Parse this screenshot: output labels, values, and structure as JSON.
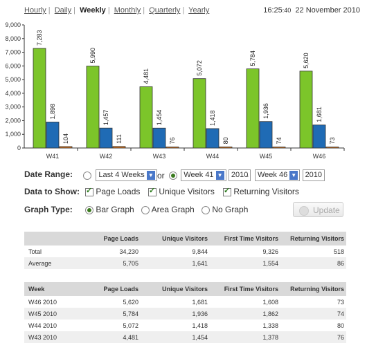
{
  "nav": {
    "items": [
      "Hourly",
      "Daily",
      "Weekly",
      "Monthly",
      "Quarterly",
      "Yearly"
    ],
    "active_index": 2
  },
  "clock": {
    "time": "16:25",
    "seconds": ":40",
    "date": "22 November 2010"
  },
  "chart_data": {
    "type": "bar",
    "categories": [
      "W41",
      "W42",
      "W43",
      "W44",
      "W45",
      "W46"
    ],
    "ylim": [
      0,
      9000
    ],
    "yticks": [
      "0",
      "1,000",
      "2,000",
      "3,000",
      "4,000",
      "5,000",
      "6,000",
      "7,000",
      "8,000",
      "9,000"
    ],
    "grid": false,
    "series": [
      {
        "values": [
          7283,
          5990,
          4481,
          5072,
          5784,
          5620
        ],
        "labels": [
          "7,283",
          "5,990",
          "4,481",
          "5,072",
          "5,784",
          "5,620"
        ],
        "color": "#7cc52a"
      },
      {
        "values": [
          1898,
          1457,
          1454,
          1418,
          1936,
          1681
        ],
        "labels": [
          "1,898",
          "1,457",
          "1,454",
          "1,418",
          "1,936",
          "1,681"
        ],
        "color": "#1f6bb5"
      },
      {
        "values": [
          104,
          111,
          76,
          80,
          74,
          73
        ],
        "labels": [
          "104",
          "111",
          "76",
          "80",
          "74",
          "73"
        ],
        "color": "#d9731b"
      }
    ]
  },
  "date_range": {
    "label": "Date Range:",
    "preset": "Last 4 Weeks",
    "or": "or",
    "from_week": "Week 41",
    "from_year": "2010",
    "dash": "-",
    "to_week": "Week 46",
    "to_year": "2010"
  },
  "data_to_show": {
    "label": "Data to Show:",
    "options": [
      "Page Loads",
      "Unique Visitors",
      "Returning Visitors"
    ]
  },
  "graph_type": {
    "label": "Graph Type:",
    "options": [
      "Bar Graph",
      "Area Graph",
      "No Graph"
    ]
  },
  "update_label": "Update",
  "summary_table": {
    "headers": [
      "",
      "Page Loads",
      "Unique Visitors",
      "First Time Visitors",
      "Returning Visitors"
    ],
    "rows": [
      [
        "Total",
        "34,230",
        "9,844",
        "9,326",
        "518"
      ],
      [
        "Average",
        "5,705",
        "1,641",
        "1,554",
        "86"
      ]
    ]
  },
  "weekly_table": {
    "headers": [
      "Week",
      "Page Loads",
      "Unique Visitors",
      "First Time Visitors",
      "Returning Visitors"
    ],
    "rows": [
      [
        "W46 2010",
        "5,620",
        "1,681",
        "1,608",
        "73"
      ],
      [
        "W45 2010",
        "5,784",
        "1,936",
        "1,862",
        "74"
      ],
      [
        "W44 2010",
        "5,072",
        "1,418",
        "1,338",
        "80"
      ],
      [
        "W43 2010",
        "4,481",
        "1,454",
        "1,378",
        "76"
      ]
    ]
  }
}
